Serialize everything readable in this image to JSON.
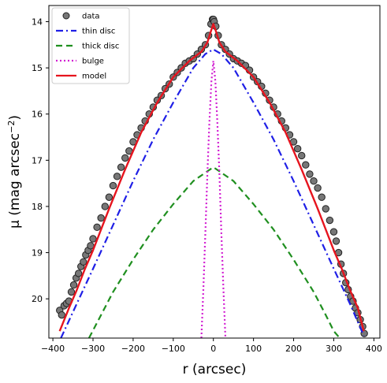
{
  "chart_data": {
    "type": "line",
    "xlabel": "r  (arcsec)",
    "ylabel_main": "μ  (mag arcsec",
    "ylabel_exp": "−2",
    "ylabel_close": ")",
    "xlim": [
      -410,
      415
    ],
    "ylim": [
      20.85,
      13.65
    ],
    "y_inverted": true,
    "x_ticks": [
      -400,
      -300,
      -200,
      -100,
      0,
      100,
      200,
      300,
      400
    ],
    "x_tick_labels": [
      "−400",
      "−300",
      "−200",
      "−100",
      "0",
      "100",
      "200",
      "300",
      "400"
    ],
    "y_ticks": [
      14,
      15,
      16,
      17,
      18,
      19,
      20
    ],
    "y_tick_labels": [
      "14",
      "15",
      "16",
      "17",
      "18",
      "19",
      "20"
    ],
    "legend_position": "top-left",
    "series": [
      {
        "name": "data",
        "kind": "scatter",
        "color": "#555555",
        "x": [
          -383,
          -378,
          -372,
          -366,
          -360,
          -354,
          -348,
          -342,
          -336,
          -330,
          -324,
          -318,
          -312,
          -306,
          -300,
          -290,
          -280,
          -270,
          -260,
          -250,
          -240,
          -230,
          -220,
          -210,
          -200,
          -190,
          -180,
          -170,
          -160,
          -150,
          -140,
          -130,
          -120,
          -110,
          -100,
          -90,
          -80,
          -70,
          -60,
          -50,
          -40,
          -30,
          -20,
          -12,
          -6,
          -2,
          0,
          2,
          6,
          12,
          20,
          30,
          40,
          50,
          60,
          70,
          80,
          90,
          100,
          110,
          120,
          130,
          140,
          150,
          160,
          170,
          180,
          190,
          200,
          210,
          220,
          230,
          240,
          250,
          260,
          270,
          280,
          290,
          300,
          306,
          312,
          318,
          324,
          330,
          336,
          342,
          348,
          354,
          360,
          366,
          372,
          376
        ],
        "y": [
          20.25,
          20.35,
          20.15,
          20.1,
          20.05,
          19.85,
          19.7,
          19.55,
          19.45,
          19.3,
          19.2,
          19.05,
          18.95,
          18.85,
          18.7,
          18.45,
          18.25,
          18.0,
          17.8,
          17.55,
          17.35,
          17.15,
          16.95,
          16.8,
          16.6,
          16.45,
          16.3,
          16.15,
          16.0,
          15.85,
          15.7,
          15.6,
          15.45,
          15.35,
          15.2,
          15.1,
          15.0,
          14.9,
          14.85,
          14.8,
          14.7,
          14.6,
          14.5,
          14.3,
          14.05,
          13.95,
          13.95,
          14.0,
          14.1,
          14.3,
          14.5,
          14.6,
          14.7,
          14.8,
          14.85,
          14.9,
          14.95,
          15.05,
          15.2,
          15.3,
          15.4,
          15.55,
          15.7,
          15.85,
          16.0,
          16.15,
          16.3,
          16.45,
          16.6,
          16.75,
          16.9,
          17.1,
          17.3,
          17.45,
          17.6,
          17.8,
          18.05,
          18.3,
          18.55,
          18.75,
          19.0,
          19.25,
          19.45,
          19.65,
          19.8,
          19.95,
          20.05,
          20.2,
          20.3,
          20.45,
          20.6,
          20.75
        ]
      },
      {
        "name": "thin disc",
        "kind": "line",
        "color": "#1f1fe6",
        "dash": "dashdot",
        "x": [
          -380,
          -340,
          -300,
          -250,
          -200,
          -150,
          -100,
          -50,
          -20,
          0,
          20,
          50,
          100,
          150,
          200,
          250,
          300,
          340,
          375
        ],
        "y": [
          20.85,
          20.1,
          19.35,
          18.4,
          17.45,
          16.55,
          15.75,
          15.0,
          14.7,
          14.6,
          14.7,
          15.0,
          15.75,
          16.55,
          17.45,
          18.4,
          19.35,
          20.1,
          20.8
        ]
      },
      {
        "name": "thick disc",
        "kind": "line",
        "color": "#1f8f1f",
        "dash": "dashed",
        "x": [
          -310,
          -280,
          -250,
          -200,
          -150,
          -100,
          -50,
          0,
          50,
          100,
          150,
          200,
          250,
          280,
          300,
          315
        ],
        "y": [
          20.85,
          20.35,
          19.85,
          19.15,
          18.5,
          17.95,
          17.45,
          17.15,
          17.45,
          17.95,
          18.5,
          19.15,
          19.85,
          20.35,
          20.7,
          20.85
        ]
      },
      {
        "name": "bulge",
        "kind": "line",
        "color": "#d21fd2",
        "dash": "dotted",
        "x": [
          -30,
          -25,
          -20,
          -15,
          -10,
          -5,
          0,
          5,
          10,
          15,
          20,
          25,
          30
        ],
        "y": [
          20.85,
          19.8,
          18.6,
          17.3,
          16.2,
          15.3,
          14.85,
          15.3,
          16.2,
          17.3,
          18.6,
          19.8,
          20.85
        ]
      },
      {
        "name": "model",
        "kind": "line",
        "color": "#e6141e",
        "dash": "solid",
        "x": [
          -383,
          -360,
          -340,
          -320,
          -300,
          -260,
          -220,
          -180,
          -140,
          -100,
          -60,
          -30,
          -15,
          -6,
          0,
          6,
          15,
          30,
          60,
          100,
          140,
          180,
          220,
          260,
          300,
          320,
          340,
          360,
          375
        ],
        "y": [
          20.7,
          20.2,
          19.8,
          19.35,
          18.95,
          18.05,
          17.2,
          16.4,
          15.75,
          15.2,
          14.85,
          14.65,
          14.45,
          14.2,
          14.05,
          14.2,
          14.45,
          14.65,
          14.85,
          15.2,
          15.75,
          16.4,
          17.2,
          18.05,
          18.95,
          19.35,
          19.8,
          20.2,
          20.7
        ]
      }
    ]
  }
}
